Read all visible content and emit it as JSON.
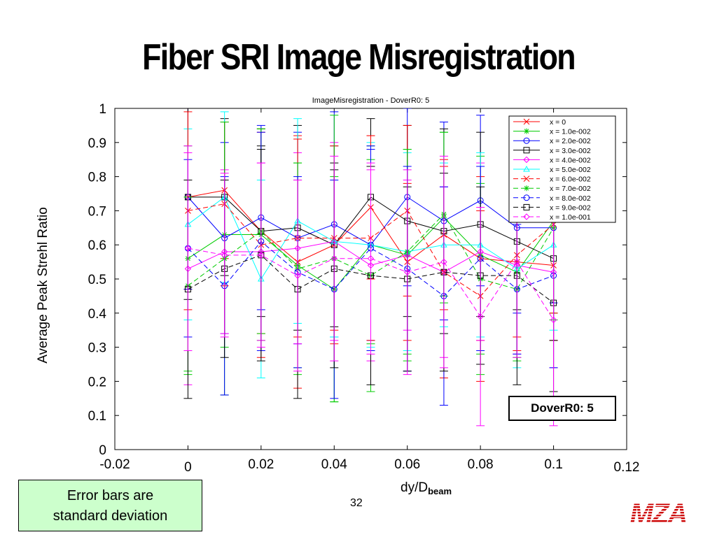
{
  "slide": {
    "title": "Fiber SRI Image Misregistration",
    "note": [
      "Error bars are",
      "standard deviation"
    ],
    "page_number": "32",
    "logo_text": "MZA"
  },
  "chart_data": {
    "type": "line",
    "title": "ImageMisregistration - DoverR0: 5",
    "ylabel": "Average Peak Strehl Ratio",
    "xlabel": "dy/D",
    "xlabel_sub": "beam",
    "xlim": [
      -0.02,
      0.12
    ],
    "ylim": [
      0,
      1
    ],
    "x_ticks": [
      "-0.02",
      "0",
      "0.02",
      "0.04",
      "0.06",
      "0.08",
      "0.1",
      "0.12"
    ],
    "y_ticks": [
      "0",
      "0.1",
      "0.2",
      "0.3",
      "0.4",
      "0.5",
      "0.6",
      "0.7",
      "0.8",
      "0.9",
      "1"
    ],
    "x": [
      0,
      0.01,
      0.02,
      0.03,
      0.04,
      0.05,
      0.06,
      0.07,
      0.08,
      0.09,
      0.1
    ],
    "annotation": "DoverR0: 5",
    "legend_position": "top-right",
    "series": [
      {
        "name": "x = 0",
        "color": "#ff0000",
        "marker": "x",
        "dash": "solid",
        "values": [
          0.74,
          0.76,
          0.64,
          0.55,
          0.6,
          0.71,
          0.55,
          0.63,
          0.56,
          0.55,
          0.54
        ],
        "err": [
          0.27,
          0.2,
          0.3,
          0.37,
          0.29,
          0.21,
          0.23,
          0.22,
          0.24,
          0.26,
          0.22
        ]
      },
      {
        "name": "x = 1.0e-002",
        "color": "#00cc00",
        "marker": "star",
        "dash": "solid",
        "values": [
          0.56,
          0.63,
          0.63,
          0.54,
          0.47,
          0.6,
          0.57,
          0.68,
          0.57,
          0.52,
          0.67
        ],
        "err": [
          0.33,
          0.33,
          0.31,
          0.3,
          0.33,
          0.29,
          0.31,
          0.25,
          0.29,
          0.25,
          0.27
        ]
      },
      {
        "name": "x = 2.0e-002",
        "color": "#0000ff",
        "marker": "circle",
        "dash": "solid",
        "values": [
          0.74,
          0.62,
          0.68,
          0.62,
          0.66,
          0.6,
          0.74,
          0.67,
          0.73,
          0.65,
          0.65
        ],
        "err": [
          0.27,
          0.28,
          0.27,
          0.31,
          0.33,
          0.28,
          0.26,
          0.29,
          0.25,
          0.25,
          0.22
        ]
      },
      {
        "name": "x = 3.0e-002",
        "color": "#000000",
        "marker": "square",
        "dash": "solid",
        "values": [
          0.74,
          0.74,
          0.64,
          0.65,
          0.6,
          0.74,
          0.67,
          0.64,
          0.66,
          0.61,
          0.56
        ],
        "err": [
          0.3,
          0.23,
          0.25,
          0.3,
          0.24,
          0.23,
          0.28,
          0.3,
          0.27,
          0.2,
          0.24
        ]
      },
      {
        "name": "x = 4.0e-002",
        "color": "#ff00ff",
        "marker": "diamond",
        "dash": "solid",
        "values": [
          0.53,
          0.58,
          0.58,
          0.59,
          0.61,
          0.54,
          0.57,
          0.52,
          0.58,
          0.54,
          0.52
        ],
        "err": [
          0.34,
          0.24,
          0.26,
          0.28,
          0.29,
          0.28,
          0.22,
          0.25,
          0.26,
          0.26,
          0.28
        ]
      },
      {
        "name": "x = 5.0e-002",
        "color": "#00ffff",
        "marker": "triangle",
        "dash": "solid",
        "values": [
          0.66,
          0.74,
          0.5,
          0.67,
          0.61,
          0.6,
          0.58,
          0.6,
          0.6,
          0.53,
          0.6
        ],
        "err": [
          0.28,
          0.25,
          0.29,
          0.3,
          0.28,
          0.3,
          0.29,
          0.24,
          0.27,
          0.29,
          0.25
        ]
      },
      {
        "name": "x = 6.0e-002",
        "color": "#ff0000",
        "marker": "x",
        "dash": "dash",
        "values": [
          0.7,
          0.72,
          0.6,
          0.62,
          0.62,
          0.62,
          0.7,
          0.52,
          0.45,
          0.57,
          0.66
        ],
        "err": [
          0.29,
          0.24,
          0.33,
          0.29,
          0.27,
          0.3,
          0.25,
          0.31,
          0.25,
          0.24,
          0.26
        ]
      },
      {
        "name": "x = 7.0e-002",
        "color": "#00cc00",
        "marker": "star",
        "dash": "dash",
        "values": [
          0.48,
          0.56,
          0.64,
          0.53,
          0.56,
          0.51,
          0.58,
          0.69,
          0.5,
          0.47,
          0.65
        ],
        "err": [
          0.26,
          0.4,
          0.3,
          0.31,
          0.42,
          0.34,
          0.3,
          0.24,
          0.28,
          0.21,
          0.27
        ]
      },
      {
        "name": "x = 8.0e-002",
        "color": "#0000ff",
        "marker": "circle",
        "dash": "dash",
        "values": [
          0.59,
          0.48,
          0.61,
          0.52,
          0.47,
          0.59,
          0.53,
          0.45,
          0.56,
          0.47,
          0.51
        ],
        "err": [
          0.26,
          0.32,
          0.32,
          0.28,
          0.32,
          0.3,
          0.3,
          0.32,
          0.27,
          0.19,
          0.27
        ]
      },
      {
        "name": "x = 9.0e-002",
        "color": "#000000",
        "marker": "square",
        "dash": "dash",
        "values": [
          0.47,
          0.53,
          0.57,
          0.47,
          0.53,
          0.51,
          0.5,
          0.52,
          0.51,
          0.51,
          0.43
        ],
        "err": [
          0.32,
          0.26,
          0.31,
          0.32,
          0.29,
          0.32,
          0.27,
          0.29,
          0.26,
          0.32,
          0.26
        ]
      },
      {
        "name": "x = 1.0e-001",
        "color": "#ff00ff",
        "marker": "diamond",
        "dash": "dash",
        "values": [
          0.59,
          0.57,
          0.57,
          0.51,
          0.56,
          0.56,
          0.52,
          0.55,
          0.39,
          0.55,
          0.38
        ],
        "err": [
          0.3,
          0.24,
          0.27,
          0.28,
          0.3,
          0.28,
          0.3,
          0.31,
          0.32,
          0.28,
          0.31
        ]
      }
    ]
  }
}
